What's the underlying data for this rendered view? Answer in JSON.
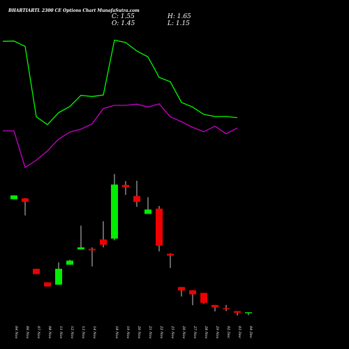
{
  "header": {
    "title": "BHARTIARTL 2300 CE Options Chart MunafaSutra.com",
    "close": "C: 1.55",
    "open": "O: 1.45",
    "high": "H: 1.65",
    "low": "L: 1.15"
  },
  "colors": {
    "background": "#000000",
    "up": "#00ee00",
    "down": "#ee0000",
    "ma_fast": "#00ff00",
    "ma_slow": "#cc00cc",
    "wick": "#ffffff"
  },
  "chart_data": {
    "type": "candlestick",
    "x_labels": [
      "04 Nov",
      "06 Nov",
      "07 Nov",
      "08 Nov",
      "11 Nov",
      "12 Nov",
      "13 Nov",
      "14 Nov",
      "18 Nov",
      "19 Nov",
      "20 Nov",
      "21 Nov",
      "22 Nov",
      "25 Nov",
      "26 Nov",
      "27 Nov",
      "28 Nov",
      "29 Nov",
      "02 Dec",
      "03 Dec",
      "04 Dec"
    ],
    "x_index": [
      0,
      1,
      2,
      3,
      4,
      5,
      6,
      7,
      8,
      9,
      10,
      11,
      12,
      13,
      14,
      15,
      16,
      17,
      18,
      19,
      20,
      21
    ],
    "label_index": [
      0,
      1,
      2,
      3,
      4,
      5,
      6,
      7,
      9,
      10,
      11,
      12,
      13,
      14,
      15,
      16,
      17,
      18,
      19,
      20,
      21
    ],
    "candles": [
      {
        "open": 33.5,
        "close": 34.8,
        "high": 34.9,
        "low": 33.4
      },
      {
        "open": 33.8,
        "close": 32.6,
        "high": 33.9,
        "low": 28.0
      },
      {
        "open": 9.8,
        "close": 8.0,
        "high": 9.8,
        "low": 8.0
      },
      {
        "open": 5.2,
        "close": 3.8,
        "high": 5.2,
        "low": 3.8
      },
      {
        "open": 4.4,
        "close": 9.8,
        "high": 12.0,
        "low": 4.4
      },
      {
        "open": 11.2,
        "close": 12.6,
        "high": 12.9,
        "low": 11.2
      },
      {
        "open": 16.4,
        "close": 17.1,
        "high": 24.5,
        "low": 16.4
      },
      {
        "open": 16.6,
        "close": 16.1,
        "high": 17.1,
        "low": 10.6
      },
      {
        "open": 19.8,
        "close": 18.0,
        "high": 26.0,
        "low": 17.1
      },
      {
        "open": 20.1,
        "close": 38.5,
        "high": 42.1,
        "low": 19.5
      },
      {
        "open": 38.4,
        "close": 37.6,
        "high": 39.7,
        "low": 35.0
      },
      {
        "open": 34.6,
        "close": 32.6,
        "high": 39.8,
        "low": 30.9
      },
      {
        "open": 28.5,
        "close": 30.0,
        "high": 34.2,
        "low": 28.5
      },
      {
        "open": 30.3,
        "close": 17.7,
        "high": 31.2,
        "low": 15.7
      },
      {
        "open": 14.9,
        "close": 14.3,
        "high": 15.1,
        "low": 10.1
      },
      {
        "open": 3.6,
        "close": 2.4,
        "high": 3.6,
        "low": 0.4
      },
      {
        "open": 2.5,
        "close": 1.1,
        "high": 2.5,
        "low": -2.6
      },
      {
        "open": 1.6,
        "close": -1.8,
        "high": 1.6,
        "low": -2.1
      },
      {
        "open": -2.5,
        "close": -3.3,
        "high": -2.5,
        "low": -4.7
      },
      {
        "open": -3.6,
        "close": -3.9,
        "high": -2.5,
        "low": -4.6
      },
      {
        "open": -4.6,
        "close": -5.2,
        "high": -4.6,
        "low": -6.1
      },
      {
        "open": -5.3,
        "close": -5.0,
        "high": -5.0,
        "low": -6.0
      }
    ],
    "ma_series": [
      {
        "color": "green",
        "values": [
          87.3,
          87.4,
          85.6,
          61.6,
          58.9,
          63.0,
          65.1,
          68.9,
          68.5,
          69.0,
          87.7,
          86.9,
          84.0,
          82.0,
          75.0,
          73.5,
          66.5,
          64.9,
          62.4,
          61.7,
          61.7,
          61.3
        ]
      },
      {
        "color": "magenta",
        "values": [
          56.8,
          56.8,
          44.3,
          46.8,
          50.0,
          54.0,
          56.4,
          57.4,
          59.2,
          64.4,
          65.5,
          65.5,
          65.9,
          64.9,
          66.0,
          61.6,
          59.9,
          58.0,
          56.5,
          58.4,
          55.8,
          57.8
        ]
      }
    ],
    "ylim": [
      -8,
      99
    ],
    "grid": false
  }
}
